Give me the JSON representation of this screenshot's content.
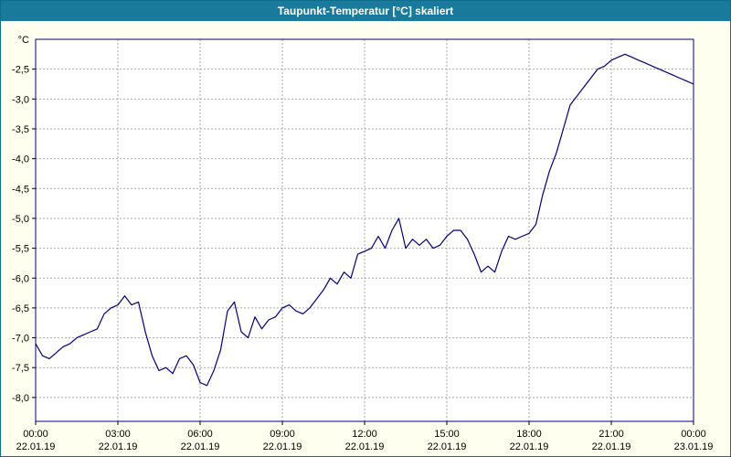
{
  "window": {
    "title": "Taupunkt-Temperatur [°C] skaliert"
  },
  "colors": {
    "title_bar_bg": "#1a7a9c",
    "title_text": "#ffffff",
    "page_bg": "#fffff0",
    "plot_bg": "#ffffff",
    "plot_border": "#000080",
    "grid": "#a8a8a8",
    "line": "#000080",
    "tick": "#000000"
  },
  "chart_data": {
    "type": "line",
    "title": "Taupunkt-Temperatur [°C] skaliert",
    "ylabel": "°C",
    "xlabel": "",
    "grid": "dashed",
    "legend": "none",
    "ylim": [
      -8.4,
      -2.0
    ],
    "xlim_hours": [
      0,
      24
    ],
    "y_tick_values": [
      -2.5,
      -3.0,
      -3.5,
      -4.0,
      -4.5,
      -5.0,
      -5.5,
      -6.0,
      -6.5,
      -7.0,
      -7.5,
      -8.0
    ],
    "y_tick_labels": [
      "-2,5",
      "-3,0",
      "-3,5",
      "-4,0",
      "-4,5",
      "-5,0",
      "-5,5",
      "-6,0",
      "-6,5",
      "-7,0",
      "-7,5",
      "-8,0"
    ],
    "x_ticks": [
      {
        "hour": 0,
        "time": "00:00",
        "date": "22.01.19"
      },
      {
        "hour": 3,
        "time": "03:00",
        "date": "22.01.19"
      },
      {
        "hour": 6,
        "time": "06:00",
        "date": "22.01.19"
      },
      {
        "hour": 9,
        "time": "09:00",
        "date": "22.01.19"
      },
      {
        "hour": 12,
        "time": "12:00",
        "date": "22.01.19"
      },
      {
        "hour": 15,
        "time": "15:00",
        "date": "22.01.19"
      },
      {
        "hour": 18,
        "time": "18:00",
        "date": "22.01.19"
      },
      {
        "hour": 21,
        "time": "21:00",
        "date": "22.01.19"
      },
      {
        "hour": 24,
        "time": "00:00",
        "date": "23.01.19"
      }
    ],
    "series": [
      {
        "name": "Taupunkt-Temperatur",
        "x_hours": [
          0,
          0.25,
          0.5,
          0.75,
          1,
          1.25,
          1.5,
          1.75,
          2,
          2.25,
          2.5,
          2.75,
          3,
          3.25,
          3.5,
          3.75,
          4,
          4.25,
          4.5,
          4.75,
          5,
          5.25,
          5.5,
          5.75,
          6,
          6.25,
          6.5,
          6.75,
          7,
          7.25,
          7.5,
          7.75,
          8,
          8.25,
          8.5,
          8.75,
          9,
          9.25,
          9.5,
          9.75,
          10,
          10.25,
          10.5,
          10.75,
          11,
          11.25,
          11.5,
          11.75,
          12,
          12.25,
          12.5,
          12.75,
          13,
          13.25,
          13.5,
          13.75,
          14,
          14.25,
          14.5,
          14.75,
          15,
          15.25,
          15.5,
          15.75,
          16,
          16.25,
          16.5,
          16.75,
          17,
          17.25,
          17.5,
          17.75,
          18,
          18.25,
          18.5,
          18.75,
          19,
          19.25,
          19.5,
          19.75,
          20,
          20.25,
          20.5,
          20.75,
          21,
          21.25,
          21.5,
          21.75,
          22,
          22.25,
          22.5,
          22.75,
          23,
          23.25,
          23.5,
          23.75,
          24
        ],
        "values": [
          -7.1,
          -7.3,
          -7.35,
          -7.25,
          -7.15,
          -7.1,
          -7.0,
          -6.95,
          -6.9,
          -6.85,
          -6.6,
          -6.5,
          -6.45,
          -6.3,
          -6.45,
          -6.4,
          -6.9,
          -7.3,
          -7.55,
          -7.5,
          -7.6,
          -7.35,
          -7.3,
          -7.45,
          -7.75,
          -7.8,
          -7.55,
          -7.2,
          -6.55,
          -6.4,
          -6.9,
          -7.0,
          -6.65,
          -6.85,
          -6.7,
          -6.65,
          -6.5,
          -6.45,
          -6.55,
          -6.6,
          -6.5,
          -6.35,
          -6.2,
          -6.0,
          -6.1,
          -5.9,
          -6.0,
          -5.6,
          -5.55,
          -5.5,
          -5.3,
          -5.5,
          -5.2,
          -5.0,
          -5.5,
          -5.35,
          -5.45,
          -5.35,
          -5.5,
          -5.45,
          -5.3,
          -5.2,
          -5.2,
          -5.35,
          -5.6,
          -5.9,
          -5.8,
          -5.9,
          -5.55,
          -5.3,
          -5.35,
          -5.3,
          -5.25,
          -5.1,
          -4.6,
          -4.2,
          -3.9,
          -3.5,
          -3.1,
          -2.95,
          -2.8,
          -2.65,
          -2.5,
          -2.45,
          -2.35,
          -2.3,
          -2.25,
          -2.3,
          -2.35,
          -2.4,
          -2.45,
          -2.5,
          -2.55,
          -2.6,
          -2.65,
          -2.7,
          -2.75
        ]
      }
    ]
  }
}
